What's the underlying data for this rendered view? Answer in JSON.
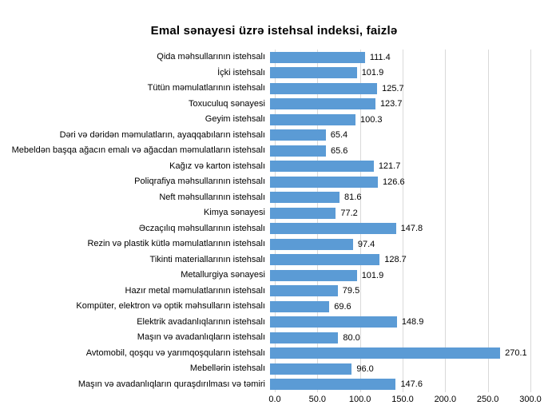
{
  "title": "Emal sənayesi üzrə istehsal indeksi, faizlə",
  "chart_data": {
    "type": "bar",
    "orientation": "horizontal",
    "title": "Emal sənayesi üzrə istehsal indeksi, faizlə",
    "categories": [
      "Qida məhsullarının istehsalı",
      "İçki istehsalı",
      "Tütün məmulatlarının istehsalı",
      "Toxuculuq sənayesi",
      "Geyim istehsalı",
      "Dəri və dəridən məmulatların, ayaqqabıların istehsalı",
      "Mebeldən başqa ağacın emalı və ağacdan məmulatların istehsalı",
      "Kağız və karton istehsalı",
      "Poliqrafiya məhsullarının istehsalı",
      "Neft məhsullarının istehsalı",
      "Kimya sənayesi",
      "Əczaçılıq məhsullarının istehsalı",
      "Rezin və plastik kütlə məmulatlarının istehsalı",
      "Tikinti materiallarının istehsalı",
      "Metallurgiya sənayesi",
      "Hazır metal məmulatlarının istehsalı",
      "Kompüter, elektron və optik məhsulların istehsalı",
      "Elektrik avadanlıqlarının istehsalı",
      "Maşın və avadanlıqların istehsalı",
      "Avtomobil, qoşqu və yarımqoşquların istehsalı",
      "Mebellərin istehsalı",
      "Maşın və avadanlıqların quraşdırılması və təmiri"
    ],
    "values": [
      111.4,
      101.9,
      125.7,
      123.7,
      100.3,
      65.4,
      65.6,
      121.7,
      126.6,
      81.6,
      77.2,
      147.8,
      97.4,
      128.7,
      101.9,
      79.5,
      69.6,
      148.9,
      80.0,
      270.1,
      96.0,
      147.6
    ],
    "value_labels_shown": true,
    "xlabel": "",
    "ylabel": "",
    "xlim": [
      0,
      300
    ],
    "x_ticks": [
      "0.0",
      "50.0",
      "100.0",
      "150.0",
      "200.0",
      "250.0",
      "300.0"
    ],
    "grid": true,
    "legend": false,
    "bar_color": "#5b9bd5",
    "gridline_color": "#d9d9d9",
    "text_color": "#000000",
    "background_color": "#ffffff"
  }
}
